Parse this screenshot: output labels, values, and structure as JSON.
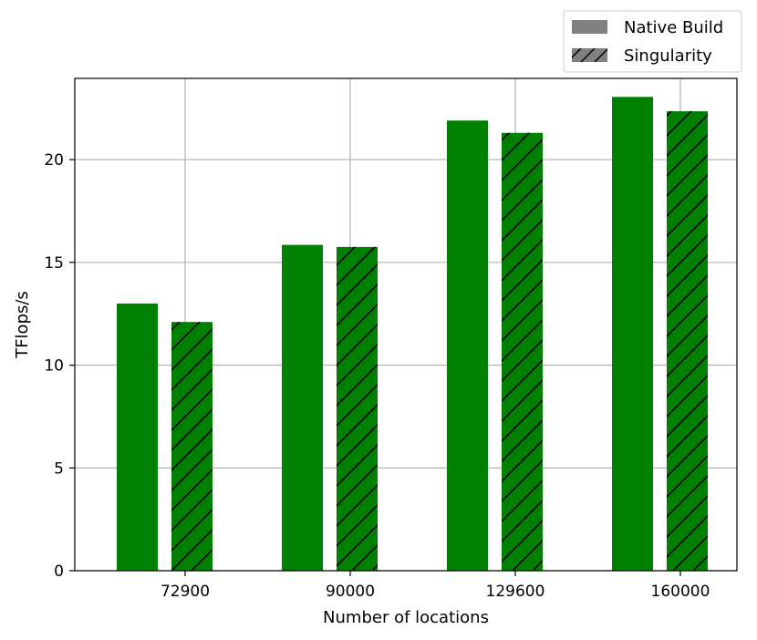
{
  "chart_data": {
    "type": "bar",
    "categories": [
      "72900",
      "90000",
      "129600",
      "160000"
    ],
    "series": [
      {
        "name": "Native Build",
        "values": [
          13.0,
          15.85,
          21.9,
          23.05
        ],
        "color": "#008000",
        "hatch": "none"
      },
      {
        "name": "Singularity",
        "values": [
          12.1,
          15.75,
          21.3,
          22.35
        ],
        "color": "#008000",
        "hatch": "diagonal"
      }
    ],
    "xlabel": "Number of locations",
    "ylabel": "TFlops/s",
    "ylim": [
      0,
      23.95
    ],
    "yticks": [
      0,
      5,
      10,
      15,
      20
    ],
    "grid": true,
    "legend": {
      "placement": "top-right-outside",
      "items": [
        "Native Build",
        "Singularity"
      ],
      "swatch_color": "#808080"
    }
  }
}
